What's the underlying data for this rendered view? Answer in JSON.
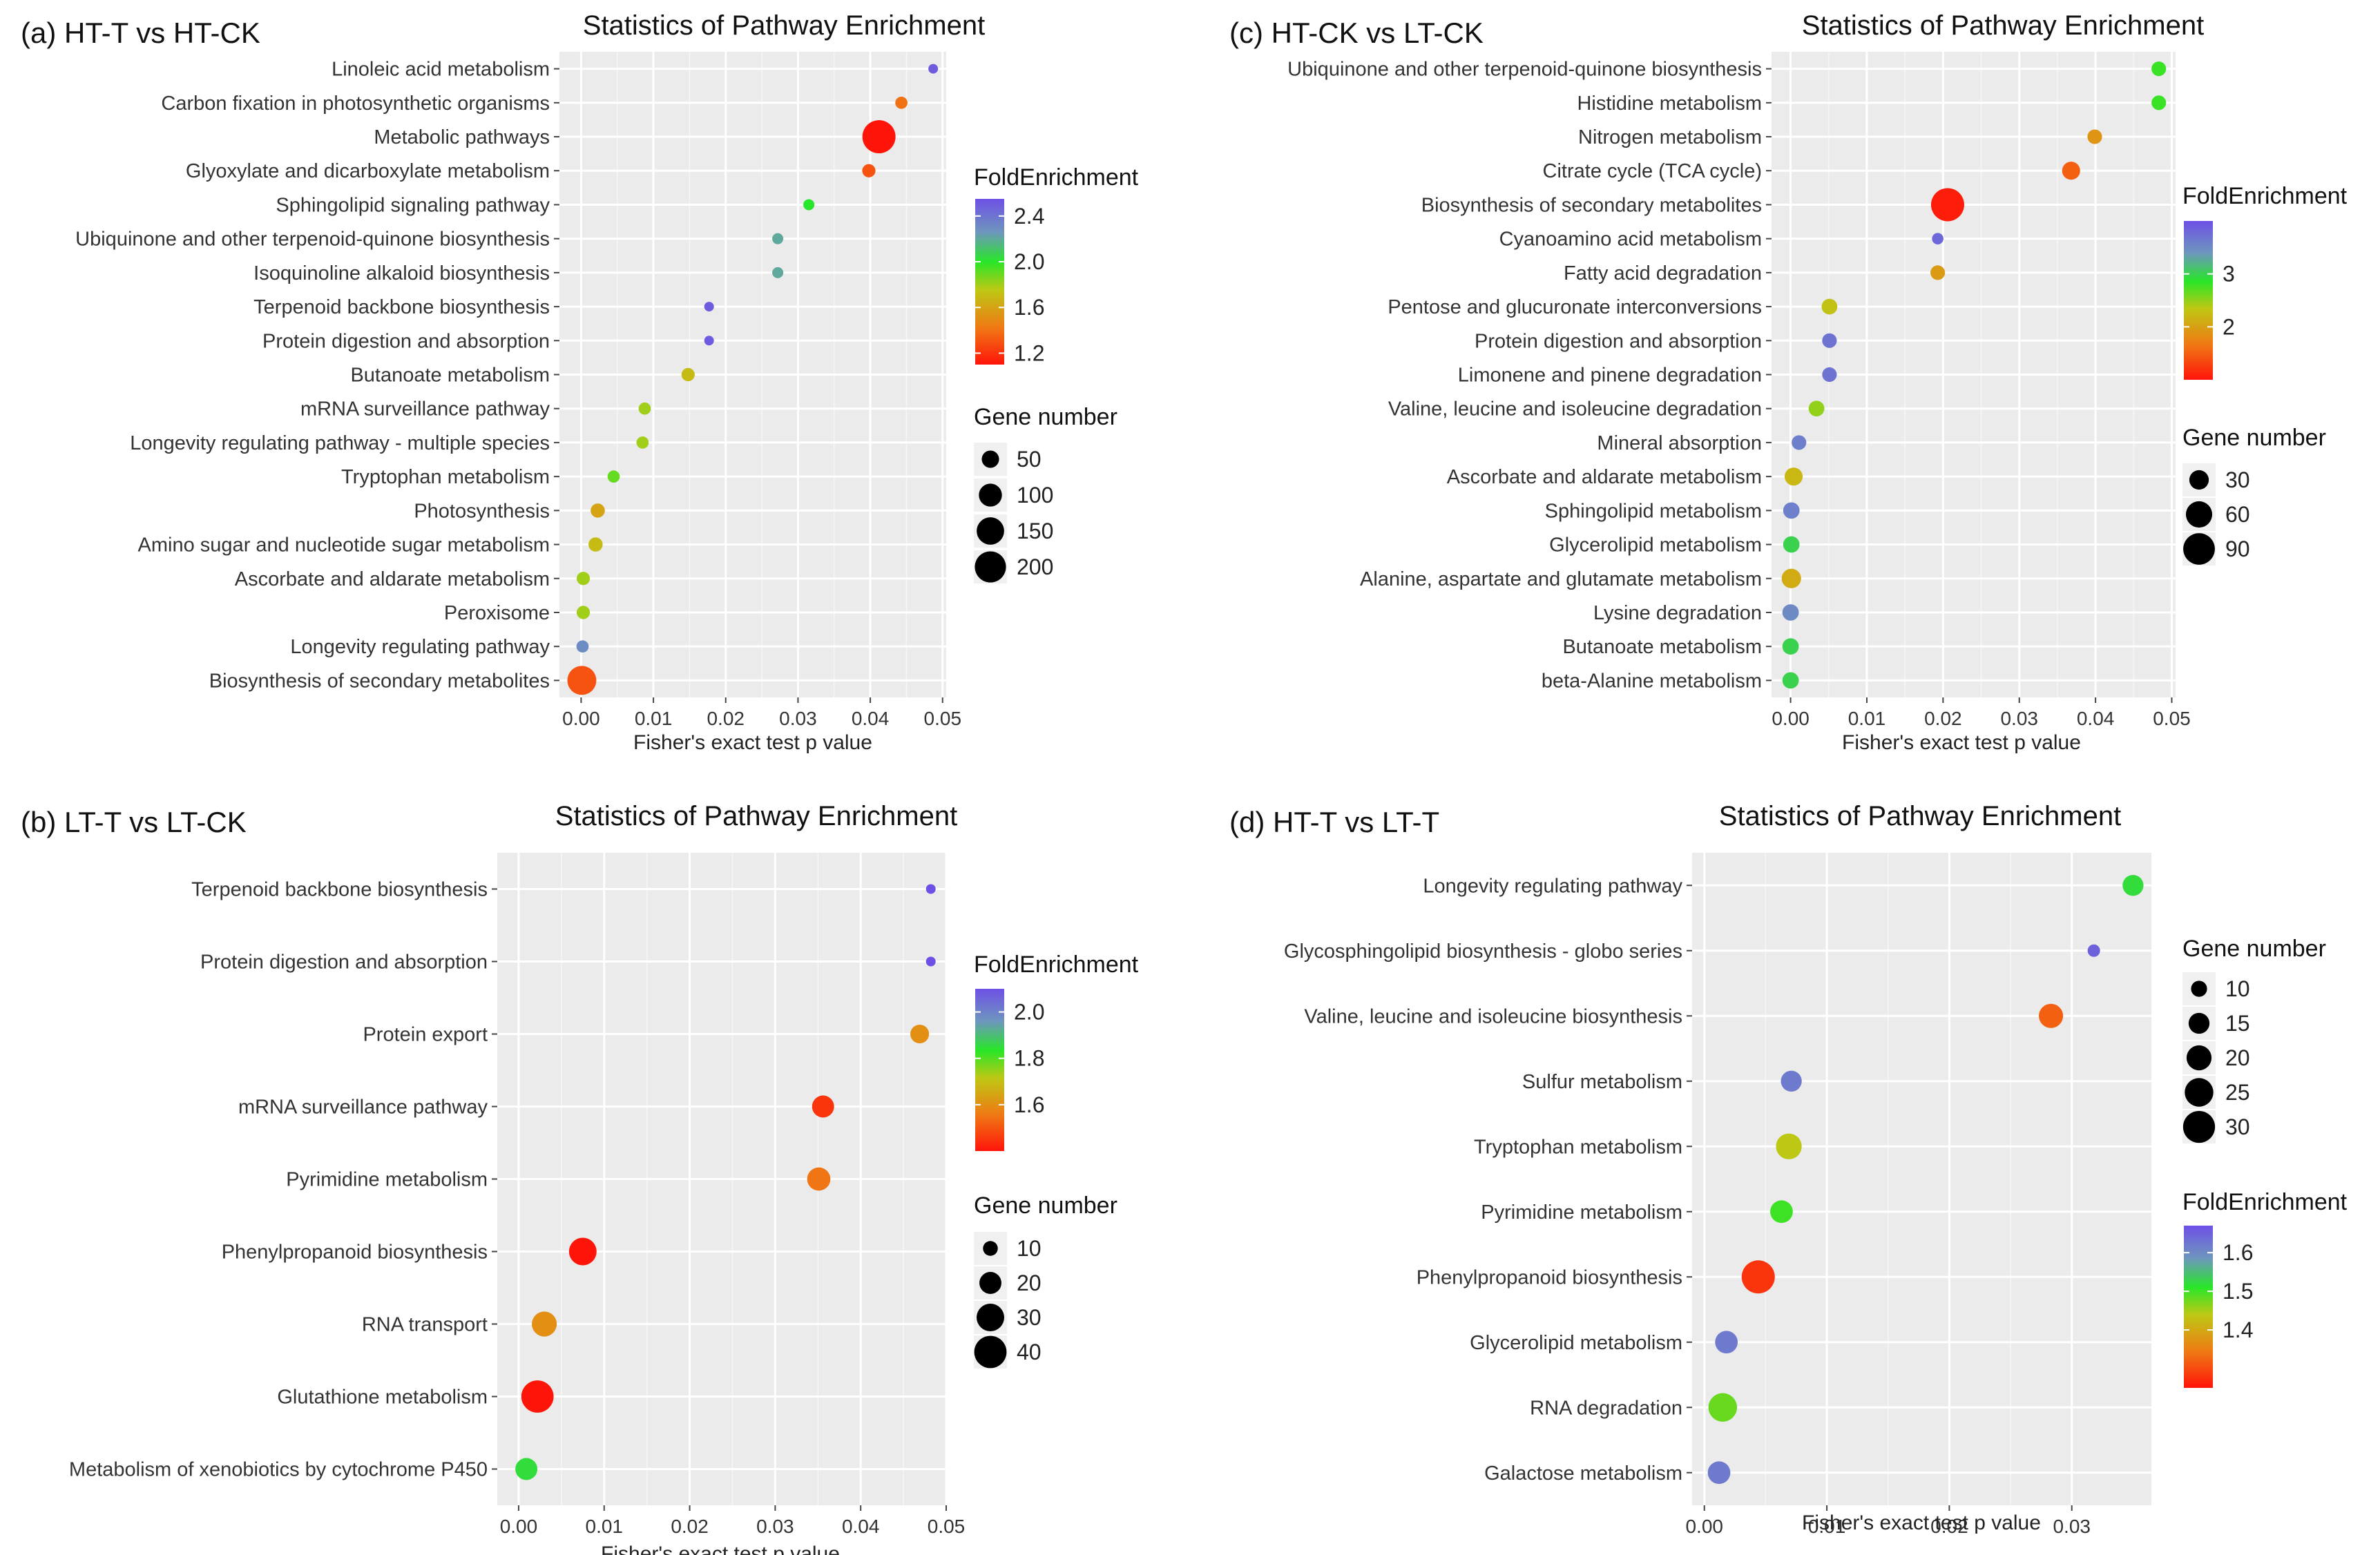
{
  "chart_data": [
    {
      "panel": "(a) HT-T vs HT-CK",
      "type": "scatter",
      "title": "Statistics of Pathway Enrichment",
      "xlabel": "Fisher's exact test p value",
      "xlim": [
        -0.003,
        0.0505
      ],
      "xticks": [
        0.0,
        0.01,
        0.02,
        0.03,
        0.04,
        0.05
      ],
      "xtick_labels": [
        "0.00",
        "0.01",
        "0.02",
        "0.03",
        "0.04",
        "0.05"
      ],
      "categories": [
        "Linoleic acid metabolism",
        "Carbon fixation in photosynthetic organisms",
        "Metabolic pathways",
        "Glyoxylate and dicarboxylate metabolism",
        "Sphingolipid signaling pathway",
        "Ubiquinone and other terpenoid-quinone biosynthesis",
        "Isoquinoline alkaloid biosynthesis",
        "Terpenoid backbone biosynthesis",
        "Protein digestion and absorption",
        "Butanoate metabolism",
        "mRNA surveillance pathway",
        "Longevity regulating pathway - multiple species",
        "Tryptophan metabolism",
        "Photosynthesis",
        "Amino sugar and nucleotide sugar metabolism",
        "Ascorbate and aldarate metabolism",
        "Peroxisome",
        "Longevity regulating pathway",
        "Biosynthesis of secondary metabolites"
      ],
      "p_values": [
        0.0487,
        0.0443,
        0.0412,
        0.0398,
        0.0315,
        0.0272,
        0.0272,
        0.0177,
        0.0177,
        0.0148,
        0.0088,
        0.0085,
        0.0045,
        0.0023,
        0.002,
        0.0003,
        0.0003,
        0.0002,
        0.0001
      ],
      "fold_enrichment": [
        2.5,
        1.4,
        1.1,
        1.3,
        2.0,
        2.2,
        2.2,
        2.5,
        2.5,
        1.7,
        1.8,
        1.8,
        1.9,
        1.6,
        1.7,
        1.8,
        1.8,
        2.3,
        1.3
      ],
      "gene_number": [
        10,
        20,
        230,
        25,
        15,
        15,
        15,
        10,
        10,
        25,
        20,
        20,
        20,
        30,
        30,
        25,
        25,
        20,
        170
      ],
      "color_legend": {
        "title": "FoldEnrichment",
        "range": [
          1.1,
          2.55
        ],
        "ticks": [
          2.4,
          2.0,
          1.6,
          1.2
        ],
        "tick_labels": [
          "2.4",
          "2.0",
          "1.6",
          "1.2"
        ]
      },
      "size_legend": {
        "title": "Gene number",
        "range": [
          10,
          230
        ],
        "values": [
          50,
          100,
          150,
          200
        ],
        "labels": [
          "50",
          "100",
          "150",
          "200"
        ]
      }
    },
    {
      "panel": "(b) LT-T vs LT-CK",
      "type": "scatter",
      "title": "Statistics of Pathway Enrichment",
      "xlabel": "Fisher's exact test p value",
      "xlim": [
        -0.0025,
        0.05
      ],
      "xticks": [
        0.0,
        0.01,
        0.02,
        0.03,
        0.04,
        0.05
      ],
      "xtick_labels": [
        "0.00",
        "0.01",
        "0.02",
        "0.03",
        "0.04",
        "0.05"
      ],
      "categories": [
        "Terpenoid backbone biosynthesis",
        "Protein digestion and absorption",
        "Protein export",
        "mRNA surveillance pathway",
        "Pyrimidine metabolism",
        "Phenylpropanoid biosynthesis",
        "RNA transport",
        "Glutathione metabolism",
        "Metabolism of xenobiotics by cytochrome P450"
      ],
      "p_values": [
        0.0482,
        0.0482,
        0.0469,
        0.0356,
        0.0351,
        0.0075,
        0.003,
        0.0022,
        0.0009
      ],
      "fold_enrichment": [
        2.1,
        2.1,
        1.6,
        1.45,
        1.55,
        1.4,
        1.6,
        1.4,
        1.85
      ],
      "gene_number": [
        5,
        5,
        15,
        20,
        22,
        30,
        25,
        40,
        20
      ],
      "color_legend": {
        "title": "FoldEnrichment",
        "range": [
          1.4,
          2.1
        ],
        "ticks": [
          2.0,
          1.8,
          1.6
        ],
        "tick_labels": [
          "2.0",
          "1.8",
          "1.6"
        ]
      },
      "size_legend": {
        "title": "Gene number",
        "range": [
          5,
          42
        ],
        "values": [
          10,
          20,
          30,
          40
        ],
        "labels": [
          "10",
          "20",
          "30",
          "40"
        ]
      }
    },
    {
      "panel": "(c) HT-CK vs LT-CK",
      "type": "scatter",
      "title": "Statistics of Pathway Enrichment",
      "xlabel": "Fisher's exact test p value",
      "xlim": [
        -0.0025,
        0.0505
      ],
      "xticks": [
        0.0,
        0.01,
        0.02,
        0.03,
        0.04,
        0.05
      ],
      "xtick_labels": [
        "0.00",
        "0.01",
        "0.02",
        "0.03",
        "0.04",
        "0.05"
      ],
      "categories": [
        "Ubiquinone and other terpenoid-quinone biosynthesis",
        "Histidine metabolism",
        "Nitrogen metabolism",
        "Citrate cycle (TCA cycle)",
        "Biosynthesis of secondary metabolites",
        "Cyanoamino acid metabolism",
        "Fatty acid degradation",
        "Pentose and glucuronate interconversions",
        "Protein digestion and absorption",
        "Limonene and pinene degradation",
        "Valine, leucine and isoleucine degradation",
        "Mineral absorption",
        "Ascorbate and aldarate metabolism",
        "Sphingolipid metabolism",
        "Glycerolipid metabolism",
        "Alanine, aspartate and glutamate metabolism",
        "Lysine degradation",
        "Butanoate metabolism",
        "beta-Alanine metabolism"
      ],
      "p_values": [
        0.0483,
        0.0483,
        0.0399,
        0.0368,
        0.0206,
        0.0193,
        0.0193,
        0.0051,
        0.0051,
        0.0051,
        0.0034,
        0.0011,
        0.0004,
        0.0001,
        0.0001,
        0.0001,
        0.0,
        0.0,
        0.0
      ],
      "fold_enrichment": [
        2.8,
        2.8,
        1.9,
        1.5,
        1.05,
        3.8,
        1.95,
        2.3,
        3.7,
        3.7,
        2.5,
        3.6,
        2.2,
        3.6,
        3.0,
        2.1,
        3.5,
        3.0,
        3.0
      ],
      "gene_number": [
        15,
        15,
        15,
        25,
        100,
        8,
        15,
        18,
        15,
        15,
        18,
        15,
        25,
        20,
        20,
        30,
        20,
        20,
        20
      ],
      "color_legend": {
        "title": "FoldEnrichment",
        "range": [
          1.0,
          4.0
        ],
        "ticks": [
          3.0,
          2.0
        ],
        "tick_labels": [
          "3",
          "2"
        ]
      },
      "size_legend": {
        "title": "Gene number",
        "range": [
          5,
          100
        ],
        "values": [
          30,
          60,
          90
        ],
        "labels": [
          "30",
          "60",
          "90"
        ]
      }
    },
    {
      "panel": "(d) HT-T vs LT-T",
      "type": "scatter",
      "title": "Statistics of Pathway Enrichment",
      "xlabel": "Fisher's exact test p value",
      "xlim": [
        -0.001,
        0.0365
      ],
      "xticks": [
        0.0,
        0.01,
        0.02,
        0.03
      ],
      "xtick_labels": [
        "0.00",
        "0.01",
        "0.02",
        "0.03"
      ],
      "categories": [
        "Longevity regulating pathway",
        "Glycosphingolipid biosynthesis - globo series",
        "Valine, leucine and isoleucine biosynthesis",
        "Sulfur metabolism",
        "Tryptophan metabolism",
        "Pyrimidine metabolism",
        "Phenylpropanoid biosynthesis",
        "Glycerolipid metabolism",
        "RNA degradation",
        "Galactose metabolism"
      ],
      "p_values": [
        0.035,
        0.0318,
        0.0283,
        0.0071,
        0.0069,
        0.0063,
        0.0044,
        0.0018,
        0.0015,
        0.0012
      ],
      "fold_enrichment": [
        1.52,
        1.65,
        1.32,
        1.62,
        1.44,
        1.5,
        1.28,
        1.62,
        1.48,
        1.62
      ],
      "gene_number": [
        15,
        7,
        19,
        15,
        21,
        17,
        32,
        17,
        25,
        17
      ],
      "color_legend": {
        "title": "FoldEnrichment",
        "range": [
          1.25,
          1.67
        ],
        "ticks": [
          1.6,
          1.5,
          1.4
        ],
        "tick_labels": [
          "1.6",
          "1.5",
          "1.4"
        ]
      },
      "size_legend": {
        "title": "Gene number",
        "range": [
          5,
          32
        ],
        "values": [
          10,
          15,
          20,
          25,
          30
        ],
        "labels": [
          "10",
          "15",
          "20",
          "25",
          "30"
        ]
      }
    }
  ]
}
